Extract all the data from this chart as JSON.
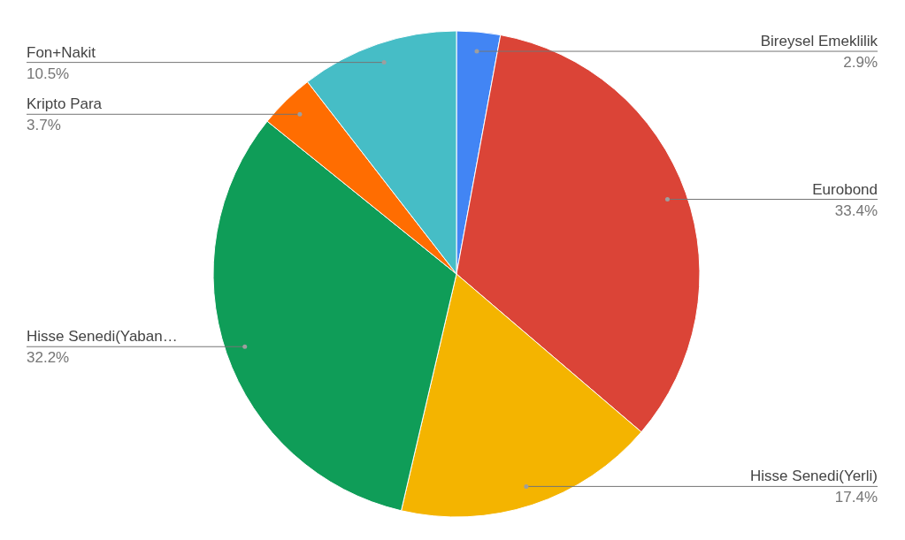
{
  "chart_data": {
    "type": "pie",
    "categories": [
      "Bireysel Emeklilik",
      "Eurobond",
      "Hisse Senedi(Yerli)",
      "Hisse Senedi(Yaban…",
      "Kripto Para",
      "Fon+Nakit"
    ],
    "values": [
      2.9,
      33.4,
      17.4,
      32.2,
      3.7,
      10.5
    ],
    "value_labels": [
      "2.9%",
      "33.4%",
      "17.4%",
      "32.2%",
      "3.7%",
      "10.5%"
    ],
    "colors": [
      "#4285f4",
      "#db4437",
      "#f4b400",
      "#0f9d58",
      "#ff6d01",
      "#46bdc6"
    ]
  }
}
